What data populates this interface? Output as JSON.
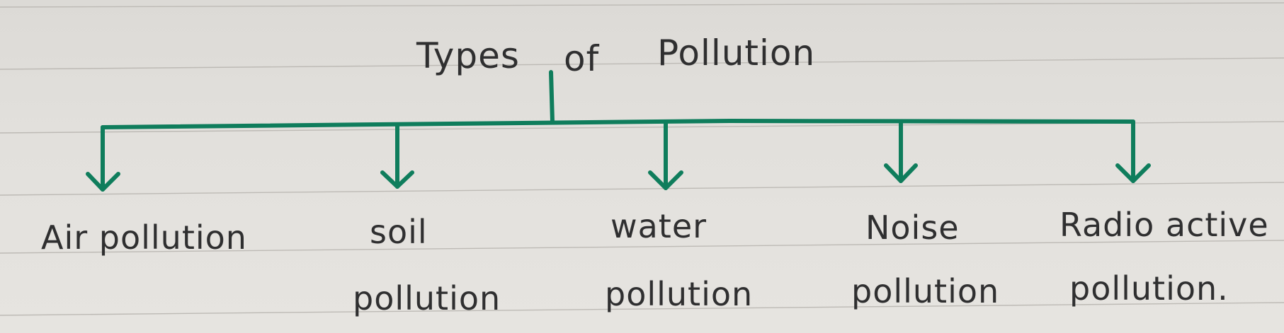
{
  "title": {
    "word1": "Types",
    "word2": "of",
    "word3": "Pollution"
  },
  "types": [
    {
      "line1": "Air pollution",
      "line2": ""
    },
    {
      "line1": "soil",
      "line2": "pollution"
    },
    {
      "line1": "water",
      "line2": "pollution"
    },
    {
      "line1": "Noise",
      "line2": "pollution"
    },
    {
      "line1": "Radio active",
      "line2": "pollution."
    }
  ],
  "colors": {
    "ink": "#2f2f30",
    "tree": "#0f7d5c",
    "paper": "#e2e0dc",
    "rule": "#bdbab5"
  }
}
